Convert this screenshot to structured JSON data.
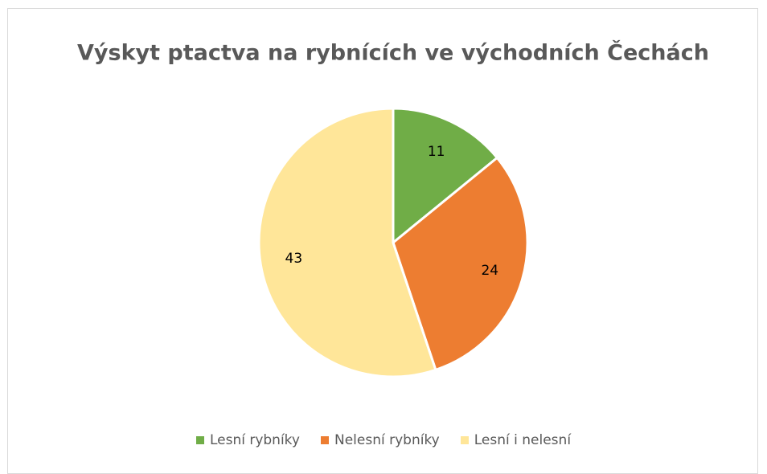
{
  "chart_data": {
    "type": "pie",
    "title": "Výskyt ptactva na rybnících ve východních Čechách",
    "categories": [
      "Lesní rybníky",
      "Nelesní rybníky",
      "Lesní i nelesní"
    ],
    "values": [
      11,
      24,
      43
    ],
    "colors": [
      "#70ad47",
      "#ed7d31",
      "#ffe699"
    ],
    "legend": "bottom"
  }
}
